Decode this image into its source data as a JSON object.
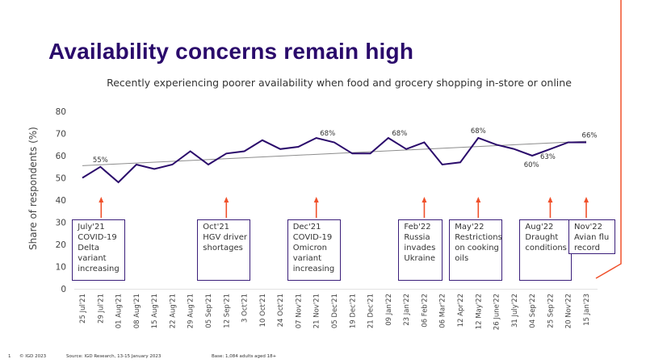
{
  "title": "Availability concerns remain high",
  "subtitle": "Recently experiencing poorer availability when food and grocery shopping in-store or online",
  "footer": {
    "page": "1",
    "copyright": "© IGD 2023",
    "source": "Source: IGD Research, 13-15 January 2023",
    "base": "Base: 1,084 adults aged 18+"
  },
  "colors": {
    "title": "#2a0a6b",
    "line": "#2a0a6b",
    "trend": "#8c8c8c",
    "arrow": "#f0502a",
    "box_border": "#3b1f7a",
    "accent": "#f0502a"
  },
  "chart_data": {
    "type": "line",
    "title": "Recently experiencing poorer availability when food and grocery shopping in-store or online",
    "xlabel": "",
    "ylabel": "Share of respondents (%)",
    "ylim": [
      0,
      80
    ],
    "yticks": [
      0,
      10,
      20,
      30,
      40,
      50,
      60,
      70,
      80
    ],
    "grid": false,
    "categories": [
      "25 Jul'21",
      "29 Jul'21",
      "01 Aug'21",
      "08 Aug'21",
      "15 Aug'21",
      "22 Aug'21",
      "29 Aug'21",
      "05 Sep'21",
      "12 Sep'21",
      "3 Oct'21",
      "10 Oct'21",
      "24 Oct'21",
      "07 Nov'21",
      "21 Nov'21",
      "05 Dec'21",
      "19 Dec'21",
      "21 Dec'21",
      "09 Jan'22",
      "23 Jan'22",
      "06 Feb'22",
      "06 Mar'22",
      "12 Apr'22",
      "12 May'22",
      "26 June'22",
      "31 July'22",
      "04 Sep'22",
      "25 Sep'22",
      "20 Nov'22",
      "15 Jan'23"
    ],
    "series": [
      {
        "name": "Share of respondents",
        "values": [
          50,
          55,
          48,
          56,
          54,
          56,
          62,
          56,
          61,
          62,
          67,
          63,
          64,
          68,
          66,
          61,
          61,
          68,
          63,
          66,
          56,
          57,
          68,
          65,
          63,
          60,
          63,
          66,
          66
        ]
      }
    ],
    "trendline": {
      "start": 55.5,
      "end": 66.5
    },
    "data_labels": [
      {
        "index": 1,
        "text": "55%"
      },
      {
        "index": 13,
        "text": "68%"
      },
      {
        "index": 17,
        "text": "68%"
      },
      {
        "index": 22,
        "text": "68%"
      },
      {
        "index": 25,
        "text": "60%"
      },
      {
        "index": 26,
        "text": "63%"
      },
      {
        "index": 28,
        "text": "66%"
      }
    ],
    "annotations": [
      {
        "index": 1,
        "lines": [
          "July'21",
          "COVID-19",
          "Delta",
          "variant",
          "increasing"
        ]
      },
      {
        "index": 8,
        "lines": [
          "Oct'21",
          "HGV driver",
          "shortages"
        ]
      },
      {
        "index": 13,
        "lines": [
          "Dec'21",
          "COVID-19",
          "Omicron",
          "variant",
          "increasing"
        ]
      },
      {
        "index": 19,
        "lines": [
          "Feb'22",
          "Russia",
          "invades",
          "Ukraine"
        ]
      },
      {
        "index": 22,
        "lines": [
          "May'22",
          "Restrictions",
          "on cooking",
          "oils"
        ]
      },
      {
        "index": 26,
        "lines": [
          "Aug'22",
          "Draught",
          "conditions"
        ]
      },
      {
        "index": 28,
        "lines": [
          "Nov'22",
          "Avian flu",
          "record"
        ]
      }
    ]
  }
}
